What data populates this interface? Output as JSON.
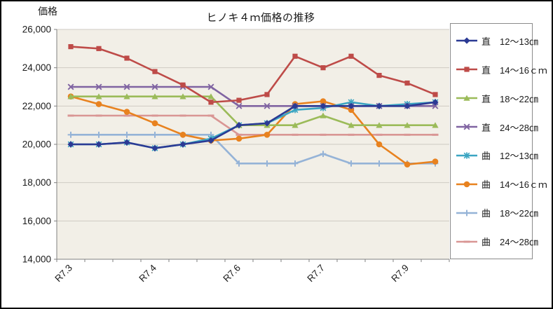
{
  "window": {
    "bg": "#ffffff",
    "border_color": "#000000"
  },
  "chart_data": {
    "type": "line",
    "title": "ヒノキ４ｍ価格の推移",
    "ylabel": "価格",
    "ylim": [
      14000,
      26000
    ],
    "ytick_step": 2000,
    "ytick_labels": [
      "26,000",
      "24,000",
      "22,000",
      "20,000",
      "18,000",
      "16,000",
      "14,000"
    ],
    "x_labels_shown": [
      "R7.3",
      "R7.4",
      "R7.6",
      "R7.7",
      "R7.9"
    ],
    "x_label_positions": [
      0,
      3,
      6,
      9,
      12
    ],
    "n_points": 14,
    "grid": true,
    "legend_position": "right",
    "plot_bg": "#f2efe7",
    "grid_color": "#cfcbc3",
    "axis_color": "#808080",
    "text_color": "#1a1a1a",
    "series": [
      {
        "name": "直　12〜13㎝",
        "color": "#2b3a94",
        "marker": "diamond",
        "values": [
          20000,
          20000,
          20100,
          19800,
          20000,
          20200,
          21000,
          21100,
          22000,
          22000,
          22000,
          22000,
          22000,
          22200
        ]
      },
      {
        "name": "直　14〜16ｃｍ",
        "color": "#be4b48",
        "marker": "square",
        "values": [
          25100,
          25000,
          24500,
          23800,
          23100,
          22200,
          22300,
          22600,
          24600,
          24000,
          24600,
          23600,
          23200,
          22600
        ]
      },
      {
        "name": "直　18〜22㎝",
        "color": "#9bbb59",
        "marker": "triangle",
        "values": [
          22500,
          22500,
          22500,
          22500,
          22500,
          22500,
          21000,
          21000,
          21000,
          21500,
          21000,
          21000,
          21000,
          21000
        ]
      },
      {
        "name": "直　24〜28㎝",
        "color": "#8064a2",
        "marker": "x",
        "values": [
          23000,
          23000,
          23000,
          23000,
          23000,
          23000,
          22000,
          22000,
          22000,
          22000,
          22000,
          22000,
          22000,
          22000
        ]
      },
      {
        "name": "曲　12〜13㎝",
        "color": "#3ba5c2",
        "marker": "asterisk",
        "values": [
          20000,
          20000,
          20100,
          19800,
          20000,
          20300,
          21000,
          21100,
          21800,
          21900,
          22200,
          22000,
          22100,
          22200
        ]
      },
      {
        "name": "曲　14〜16ｃｍ",
        "color": "#e8821f",
        "marker": "circle",
        "values": [
          22500,
          22100,
          21700,
          21100,
          20500,
          20200,
          20300,
          20500,
          22100,
          22250,
          21800,
          20000,
          18950,
          19100
        ]
      },
      {
        "name": "曲　18〜22㎝",
        "color": "#95b3d7",
        "marker": "plus",
        "values": [
          20500,
          20500,
          20500,
          20500,
          20500,
          20500,
          19000,
          19000,
          19000,
          19500,
          19000,
          19000,
          19000,
          19000
        ]
      },
      {
        "name": "曲　24〜28㎝",
        "color": "#d99694",
        "marker": "dash",
        "values": [
          21500,
          21500,
          21500,
          21500,
          21500,
          21500,
          20500,
          20500,
          20500,
          20500,
          20500,
          20500,
          20500,
          20500
        ]
      }
    ]
  }
}
